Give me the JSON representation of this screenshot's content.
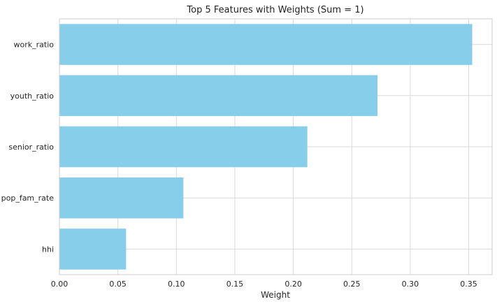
{
  "chart_data": {
    "type": "bar",
    "orientation": "horizontal",
    "title": "Top 5 Features with Weights (Sum = 1)",
    "xlabel": "Weight",
    "ylabel": "",
    "categories": [
      "work_ratio",
      "youth_ratio",
      "senior_ratio",
      "pop_fam_rate",
      "hhi"
    ],
    "values": [
      0.353,
      0.272,
      0.212,
      0.106,
      0.057
    ],
    "xlim": [
      0,
      0.37
    ],
    "xticks": [
      "0.00",
      "0.05",
      "0.10",
      "0.15",
      "0.20",
      "0.25",
      "0.30",
      "0.35"
    ],
    "grid": true,
    "legend": "none",
    "bar_color": "#87CEEB",
    "grid_color": "#d9d9d9",
    "frame_color": "#cccccc"
  }
}
